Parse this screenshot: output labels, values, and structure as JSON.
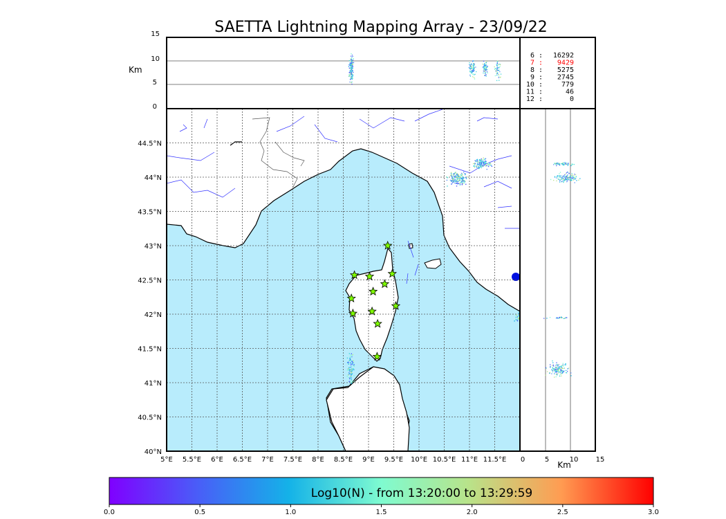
{
  "chart_data": {
    "type": "scatter",
    "title": "SAETTA Lightning Mapping Array - 23/09/22",
    "map": {
      "lon_range": [
        5,
        12
      ],
      "lat_range": [
        40,
        45
      ],
      "x_ticks": [
        "5°E",
        "5.5°E",
        "6°E",
        "6.5°E",
        "7°E",
        "7.5°E",
        "8°E",
        "8.5°E",
        "9°E",
        "9.5°E",
        "10°E",
        "10.5°E",
        "11°E",
        "11.5°E"
      ],
      "y_ticks": [
        "40°N",
        "40.5°N",
        "41°N",
        "41.5°N",
        "42°N",
        "42.5°N",
        "43°N",
        "43.5°N",
        "44°N",
        "44.5°N"
      ],
      "grid": "dotted",
      "sea_color": "#b8ecfc",
      "stations": [
        {
          "lon": 9.38,
          "lat": 43.0
        },
        {
          "lon": 8.72,
          "lat": 42.57
        },
        {
          "lon": 9.02,
          "lat": 42.55
        },
        {
          "lon": 9.47,
          "lat": 42.59
        },
        {
          "lon": 9.32,
          "lat": 42.44
        },
        {
          "lon": 9.09,
          "lat": 42.33
        },
        {
          "lon": 8.66,
          "lat": 42.23
        },
        {
          "lon": 9.54,
          "lat": 42.12
        },
        {
          "lon": 9.07,
          "lat": 42.04
        },
        {
          "lon": 8.69,
          "lat": 42.01
        },
        {
          "lon": 9.18,
          "lat": 41.86
        },
        {
          "lon": 9.17,
          "lat": 41.38
        }
      ],
      "station_color": "#7fff00",
      "lightning_clusters": [
        {
          "lon": 10.75,
          "lat": 43.98,
          "n": 160,
          "spread_lon": 0.12,
          "spread_lat": 0.06
        },
        {
          "lon": 11.22,
          "lat": 44.2,
          "n": 120,
          "spread_lon": 0.12,
          "spread_lat": 0.05
        },
        {
          "lon": 8.64,
          "lat": 41.22,
          "n": 90,
          "spread_lon": 0.05,
          "spread_lat": 0.15
        },
        {
          "lon": 11.95,
          "lat": 41.95,
          "n": 20,
          "spread_lon": 0.04,
          "spread_lat": 0.04
        }
      ]
    },
    "altitude_panel": {
      "ylabel": "Km",
      "y_ticks": [
        "0",
        "5",
        "10",
        "15"
      ],
      "y_range": [
        0,
        15
      ],
      "gridlines_km": [
        5,
        10
      ],
      "counts": [
        {
          "label": "6 :",
          "value": "16292",
          "color": "#000000"
        },
        {
          "label": "7 :",
          "value": "9429",
          "color": "#ff0000"
        },
        {
          "label": "8 :",
          "value": "5275",
          "color": "#000000"
        },
        {
          "label": "9 :",
          "value": "2745",
          "color": "#000000"
        },
        {
          "label": "10 :",
          "value": "779",
          "color": "#000000"
        },
        {
          "label": "11 :",
          "value": "46",
          "color": "#000000"
        },
        {
          "label": "12 :",
          "value": "0",
          "color": "#000000"
        }
      ]
    },
    "side_panel": {
      "xlabel": "Km",
      "x_ticks": [
        "0",
        "5",
        "10",
        "15"
      ],
      "x_range": [
        0,
        15
      ],
      "gridlines_km": [
        5,
        10
      ]
    },
    "colorbar": {
      "label": "Log10(N) - from 13:20:00 to 13:29:59",
      "ticks": [
        "0.0",
        "0.5",
        "1.0",
        "1.5",
        "2.0",
        "2.5",
        "3.0"
      ],
      "range": [
        0,
        3
      ]
    }
  }
}
